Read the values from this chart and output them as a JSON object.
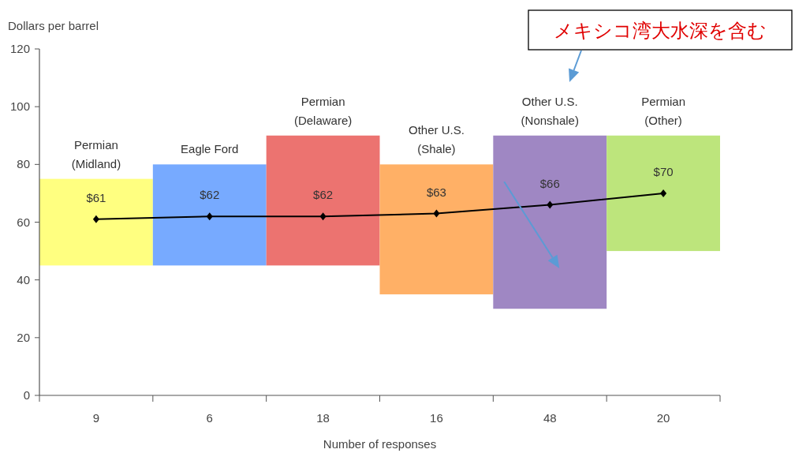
{
  "chart_data": {
    "type": "bar",
    "xlabel": "Number of responses",
    "ylabel": "Dollars per barrel",
    "categories": [
      "9",
      "6",
      "18",
      "16",
      "48",
      "20"
    ],
    "ylim": [
      0,
      120
    ],
    "yticks": [
      0,
      20,
      40,
      60,
      80,
      100,
      120
    ],
    "grid": false,
    "series": [
      {
        "colors": [
          "#ffff80",
          "#77aaff",
          "#ec7370",
          "#ffb066",
          "#9f87c3",
          "#bde57c"
        ],
        "base": [
          45,
          45,
          45,
          35,
          30,
          50
        ],
        "values": [
          30,
          35,
          45,
          45,
          60,
          40
        ]
      },
      {
        "type": "line",
        "color": "#000000",
        "marker": "diamond",
        "line_style": "solid",
        "values": [
          61,
          62,
          62,
          63,
          66,
          70
        ],
        "value_labels": [
          "$61",
          "$62",
          "$62",
          "$63",
          "$66",
          "$70"
        ]
      }
    ],
    "annotations": [
      "Permian (Midland)",
      "Eagle Ford",
      "Permian (Delaware)",
      "Other U.S. (Shale)",
      "Other U.S. (Nonshale)",
      "Permian (Other)",
      "メキシコ湾大水深を含む"
    ]
  }
}
